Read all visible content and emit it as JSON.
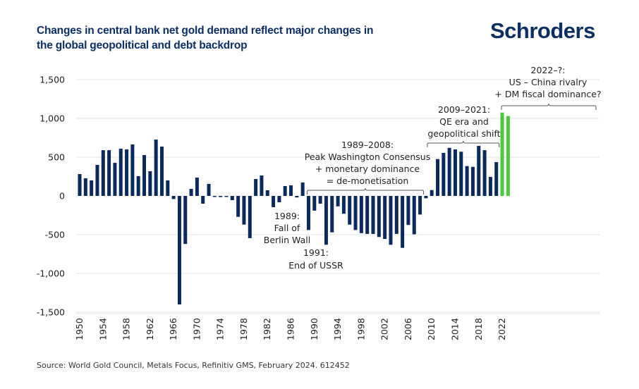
{
  "header": {
    "title_line1": "Changes in central bank net gold demand reflect major changes in",
    "title_line2": "the global geopolitical and debt backdrop",
    "logo": "Schroders"
  },
  "footer": {
    "source": "Source: World Gold Council, Metals Focus, Refinitiv GMS, February 2024. 612452"
  },
  "colors": {
    "historical": "#0a2a5e",
    "recent": "#4cc83f",
    "gridline": "#e3e3e3",
    "bracket": "#555555"
  },
  "chart_data": {
    "type": "bar",
    "title": "Changes in central bank net gold demand reflect major changes in the global geopolitical and debt backdrop",
    "xlabel": "",
    "ylabel": "",
    "ylim": [
      -1500,
      1500
    ],
    "yticks": [
      1500,
      1000,
      500,
      0,
      -500,
      -1000,
      -1500
    ],
    "ytick_labels": [
      "1,500",
      "1,000",
      "500",
      "0",
      "-500",
      "-1,000",
      "-1,500"
    ],
    "xticks": [
      "1950",
      "1954",
      "1958",
      "1962",
      "1966",
      "1970",
      "1974",
      "1978",
      "1982",
      "1986",
      "1990",
      "1994",
      "1998",
      "2002",
      "2006",
      "2010",
      "2014",
      "2018",
      "2022"
    ],
    "grid": true,
    "categories": [
      "1950",
      "1951",
      "1952",
      "1953",
      "1954",
      "1955",
      "1956",
      "1957",
      "1958",
      "1959",
      "1960",
      "1961",
      "1962",
      "1963",
      "1964",
      "1965",
      "1966",
      "1967",
      "1968",
      "1969",
      "1970",
      "1971",
      "1972",
      "1973",
      "1974",
      "1975",
      "1976",
      "1977",
      "1978",
      "1979",
      "1980",
      "1981",
      "1982",
      "1983",
      "1984",
      "1985",
      "1986",
      "1987",
      "1988",
      "1989",
      "1990",
      "1991",
      "1992",
      "1993",
      "1994",
      "1995",
      "1996",
      "1997",
      "1998",
      "1999",
      "2000",
      "2001",
      "2002",
      "2003",
      "2004",
      "2005",
      "2006",
      "2007",
      "2008",
      "2009",
      "2010",
      "2011",
      "2012",
      "2013",
      "2014",
      "2015",
      "2016",
      "2017",
      "2018",
      "2019",
      "2020",
      "2021",
      "2022",
      "2023"
    ],
    "values": [
      282,
      227,
      200,
      400,
      590,
      590,
      427,
      609,
      600,
      664,
      255,
      527,
      318,
      727,
      636,
      200,
      -40,
      -1400,
      -620,
      90,
      236,
      -100,
      155,
      -10,
      -15,
      -10,
      -55,
      -270,
      -370,
      -545,
      218,
      264,
      73,
      -145,
      -82,
      127,
      136,
      -20,
      173,
      -440,
      -190,
      -100,
      -630,
      -470,
      -135,
      -230,
      -370,
      -440,
      -480,
      -490,
      -490,
      -530,
      -555,
      -630,
      -490,
      -670,
      -375,
      -495,
      -240,
      -30,
      75,
      475,
      555,
      620,
      600,
      570,
      385,
      375,
      645,
      590,
      245,
      436,
      1075,
      1030
    ],
    "highlight_from": "2022",
    "annotations": [
      {
        "id": "berlin",
        "lines": [
          "1989:",
          "Fall of",
          "Berlin Wall"
        ]
      },
      {
        "id": "ussr",
        "lines": [
          "1991:",
          "End of USSR"
        ]
      },
      {
        "id": "washington",
        "lines": [
          "1989–2008:",
          "Peak Washington Consensus",
          "+ monetary dominance",
          "= de-monetisation"
        ],
        "range": [
          "1989",
          "2008"
        ]
      },
      {
        "id": "qe",
        "lines": [
          "2009–2021:",
          "QE era and",
          "geopolitical shift"
        ],
        "range": [
          "2009",
          "2021"
        ]
      },
      {
        "id": "rivalry",
        "lines": [
          "2022–?:",
          "US – China rivalry",
          "+ DM fiscal dominance?"
        ],
        "range": [
          "2022",
          "2035"
        ]
      }
    ]
  }
}
